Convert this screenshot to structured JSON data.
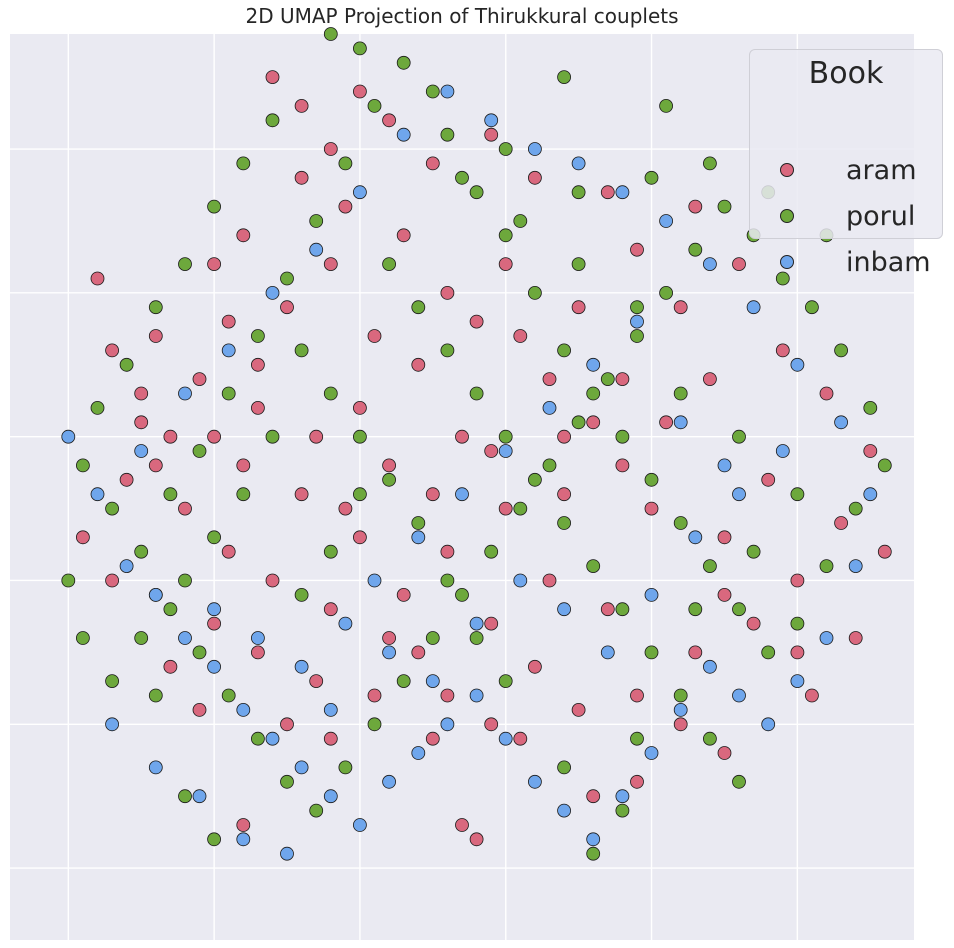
{
  "chart_data": {
    "type": "scatter",
    "title": "2D UMAP Projection of Thirukkural couplets",
    "xlabel": "",
    "ylabel": "",
    "xlim": [
      -0.4,
      5.8
    ],
    "ylim": [
      -0.5,
      5.8
    ],
    "x_ticks": [
      0,
      1,
      2,
      3,
      4,
      5,
      6
    ],
    "y_ticks": [
      0,
      1,
      2,
      3,
      4,
      5,
      6
    ],
    "tick_labels_visible": false,
    "grid": true,
    "background": "#EAEAF2",
    "legend": {
      "title": "Book",
      "position": "upper right",
      "entries": [
        "aram",
        "porul",
        "inbam"
      ]
    },
    "colors": {
      "aram": "#D9687E",
      "porul": "#6DA83C",
      "inbam": "#6FA6EC"
    },
    "series": [
      {
        "name": "aram",
        "points": [
          [
            0.4,
            2.7
          ],
          [
            0.6,
            2.8
          ],
          [
            0.5,
            3.1
          ],
          [
            0.3,
            3.6
          ],
          [
            0.2,
            4.1
          ],
          [
            1.4,
            5.5
          ],
          [
            1.6,
            5.3
          ],
          [
            1.8,
            5.0
          ],
          [
            2.2,
            5.2
          ],
          [
            2.5,
            4.9
          ],
          [
            1.9,
            4.6
          ],
          [
            1.2,
            4.4
          ],
          [
            1.0,
            4.2
          ],
          [
            1.5,
            3.9
          ],
          [
            2.1,
            3.7
          ],
          [
            2.4,
            3.5
          ],
          [
            2.8,
            3.8
          ],
          [
            3.0,
            4.2
          ],
          [
            3.3,
            3.4
          ],
          [
            3.6,
            3.1
          ],
          [
            2.7,
            3.0
          ],
          [
            2.2,
            2.8
          ],
          [
            1.9,
            2.5
          ],
          [
            1.7,
            3.0
          ],
          [
            1.3,
            3.2
          ],
          [
            0.9,
            3.4
          ],
          [
            0.7,
            3.0
          ],
          [
            0.8,
            2.5
          ],
          [
            1.1,
            2.2
          ],
          [
            1.4,
            2.0
          ],
          [
            1.8,
            1.8
          ],
          [
            2.3,
            1.9
          ],
          [
            2.6,
            2.2
          ],
          [
            3.0,
            2.5
          ],
          [
            3.4,
            2.6
          ],
          [
            3.8,
            2.8
          ],
          [
            4.1,
            3.1
          ],
          [
            4.4,
            3.4
          ],
          [
            4.2,
            3.9
          ],
          [
            4.6,
            4.2
          ],
          [
            4.9,
            3.6
          ],
          [
            5.2,
            3.3
          ],
          [
            5.5,
            2.9
          ],
          [
            5.3,
            2.4
          ],
          [
            5.0,
            2.0
          ],
          [
            4.7,
            1.7
          ],
          [
            4.3,
            1.5
          ],
          [
            3.9,
            1.2
          ],
          [
            3.5,
            1.1
          ],
          [
            3.2,
            1.4
          ],
          [
            2.9,
            1.0
          ],
          [
            2.5,
            0.9
          ],
          [
            2.1,
            1.2
          ],
          [
            1.7,
            1.3
          ],
          [
            1.3,
            1.5
          ],
          [
            1.0,
            1.7
          ],
          [
            0.6,
            1.9
          ],
          [
            0.3,
            2.0
          ],
          [
            0.1,
            2.3
          ],
          [
            0.7,
            1.4
          ],
          [
            0.9,
            1.1
          ],
          [
            1.5,
            1.0
          ],
          [
            2.7,
            0.3
          ],
          [
            2.8,
            0.2
          ],
          [
            1.2,
            0.3
          ],
          [
            3.9,
            0.6
          ],
          [
            4.5,
            0.8
          ],
          [
            5.1,
            1.2
          ],
          [
            5.4,
            1.6
          ],
          [
            5.6,
            2.2
          ],
          [
            4.8,
            2.7
          ],
          [
            4.5,
            2.3
          ],
          [
            3.7,
            1.8
          ],
          [
            3.3,
            2.0
          ],
          [
            2.9,
            1.7
          ],
          [
            2.4,
            1.5
          ],
          [
            2.0,
            2.3
          ],
          [
            1.6,
            2.6
          ],
          [
            1.2,
            2.8
          ],
          [
            1.0,
            3.0
          ],
          [
            0.5,
            3.3
          ],
          [
            1.8,
            4.2
          ],
          [
            2.3,
            4.4
          ],
          [
            2.6,
            4.0
          ],
          [
            3.1,
            3.7
          ],
          [
            3.5,
            3.9
          ],
          [
            3.9,
            4.3
          ],
          [
            4.3,
            4.6
          ],
          [
            3.7,
            4.7
          ],
          [
            3.2,
            4.8
          ],
          [
            2.9,
            5.1
          ],
          [
            2.0,
            5.4
          ],
          [
            1.6,
            4.8
          ],
          [
            1.1,
            3.8
          ],
          [
            0.6,
            3.7
          ],
          [
            1.3,
            3.5
          ],
          [
            2.0,
            3.2
          ],
          [
            2.5,
            2.6
          ],
          [
            2.9,
            2.9
          ],
          [
            3.4,
            3.0
          ],
          [
            3.8,
            3.4
          ],
          [
            4.0,
            2.5
          ],
          [
            4.5,
            1.9
          ],
          [
            5.0,
            1.5
          ],
          [
            4.2,
            1.0
          ],
          [
            3.6,
            0.5
          ],
          [
            3.1,
            0.9
          ],
          [
            2.6,
            1.2
          ],
          [
            2.2,
            1.6
          ],
          [
            1.8,
            0.9
          ]
        ]
      },
      {
        "name": "porul",
        "points": [
          [
            0.1,
            2.8
          ],
          [
            0.3,
            2.5
          ],
          [
            0.5,
            2.2
          ],
          [
            0.7,
            2.6
          ],
          [
            0.9,
            2.9
          ],
          [
            1.1,
            3.3
          ],
          [
            1.3,
            3.7
          ],
          [
            1.5,
            4.1
          ],
          [
            1.7,
            4.5
          ],
          [
            1.9,
            4.9
          ],
          [
            2.1,
            5.3
          ],
          [
            2.3,
            5.6
          ],
          [
            2.6,
            5.1
          ],
          [
            2.8,
            4.7
          ],
          [
            3.0,
            4.4
          ],
          [
            3.2,
            4.0
          ],
          [
            3.4,
            3.6
          ],
          [
            3.6,
            3.3
          ],
          [
            3.8,
            3.0
          ],
          [
            4.0,
            2.7
          ],
          [
            4.2,
            2.4
          ],
          [
            4.4,
            2.1
          ],
          [
            4.6,
            1.8
          ],
          [
            4.8,
            1.5
          ],
          [
            5.0,
            1.7
          ],
          [
            5.2,
            2.1
          ],
          [
            5.4,
            2.5
          ],
          [
            5.6,
            2.8
          ],
          [
            5.5,
            3.2
          ],
          [
            5.3,
            3.6
          ],
          [
            5.1,
            3.9
          ],
          [
            4.9,
            4.1
          ],
          [
            4.7,
            4.4
          ],
          [
            4.5,
            4.6
          ],
          [
            4.3,
            4.3
          ],
          [
            4.1,
            4.0
          ],
          [
            3.9,
            3.7
          ],
          [
            3.7,
            3.4
          ],
          [
            3.5,
            3.1
          ],
          [
            3.3,
            2.8
          ],
          [
            3.1,
            2.5
          ],
          [
            2.9,
            2.2
          ],
          [
            2.7,
            1.9
          ],
          [
            2.5,
            1.6
          ],
          [
            2.3,
            1.3
          ],
          [
            2.1,
            1.0
          ],
          [
            1.9,
            0.7
          ],
          [
            1.7,
            0.4
          ],
          [
            1.5,
            0.6
          ],
          [
            1.3,
            0.9
          ],
          [
            1.1,
            1.2
          ],
          [
            0.9,
            1.5
          ],
          [
            0.7,
            1.8
          ],
          [
            0.5,
            1.6
          ],
          [
            0.3,
            1.3
          ],
          [
            0.1,
            1.6
          ],
          [
            0.0,
            2.0
          ],
          [
            0.2,
            3.2
          ],
          [
            0.4,
            3.5
          ],
          [
            0.6,
            3.9
          ],
          [
            0.8,
            4.2
          ],
          [
            1.0,
            4.6
          ],
          [
            1.2,
            4.9
          ],
          [
            1.4,
            5.2
          ],
          [
            2.0,
            5.7
          ],
          [
            2.5,
            5.4
          ],
          [
            3.0,
            5.0
          ],
          [
            3.5,
            4.7
          ],
          [
            4.0,
            4.8
          ],
          [
            4.4,
            4.9
          ],
          [
            4.8,
            4.7
          ],
          [
            5.2,
            4.4
          ],
          [
            2.2,
            4.2
          ],
          [
            2.4,
            3.9
          ],
          [
            2.6,
            3.6
          ],
          [
            2.8,
            3.3
          ],
          [
            3.0,
            3.0
          ],
          [
            3.2,
            2.7
          ],
          [
            3.4,
            2.4
          ],
          [
            3.6,
            2.1
          ],
          [
            3.8,
            1.8
          ],
          [
            4.0,
            1.5
          ],
          [
            4.2,
            1.2
          ],
          [
            4.4,
            0.9
          ],
          [
            4.6,
            0.6
          ],
          [
            3.8,
            0.4
          ],
          [
            3.4,
            0.7
          ],
          [
            3.0,
            1.3
          ],
          [
            2.8,
            1.6
          ],
          [
            2.6,
            2.0
          ],
          [
            2.4,
            2.4
          ],
          [
            2.2,
            2.7
          ],
          [
            2.0,
            3.0
          ],
          [
            1.8,
            3.3
          ],
          [
            1.6,
            3.6
          ],
          [
            1.4,
            3.0
          ],
          [
            1.2,
            2.6
          ],
          [
            1.0,
            2.3
          ],
          [
            0.8,
            2.0
          ],
          [
            0.6,
            1.2
          ],
          [
            0.8,
            0.5
          ],
          [
            1.0,
            0.2
          ],
          [
            1.6,
            1.9
          ],
          [
            1.8,
            2.2
          ],
          [
            2.0,
            2.6
          ],
          [
            3.6,
            0.1
          ],
          [
            3.9,
            0.9
          ],
          [
            4.3,
            1.8
          ],
          [
            4.7,
            2.2
          ],
          [
            5.0,
            2.6
          ],
          [
            4.6,
            3.0
          ],
          [
            4.2,
            3.3
          ],
          [
            3.9,
            3.9
          ],
          [
            3.5,
            4.2
          ],
          [
            3.1,
            4.5
          ],
          [
            2.7,
            4.8
          ],
          [
            1.8,
            5.8
          ],
          [
            3.4,
            5.5
          ],
          [
            4.1,
            5.3
          ]
        ]
      },
      {
        "name": "inbam",
        "points": [
          [
            0.0,
            3.0
          ],
          [
            0.2,
            2.6
          ],
          [
            0.4,
            2.1
          ],
          [
            0.6,
            1.9
          ],
          [
            0.8,
            1.6
          ],
          [
            1.0,
            1.4
          ],
          [
            1.2,
            1.1
          ],
          [
            1.4,
            0.9
          ],
          [
            1.6,
            0.7
          ],
          [
            1.8,
            0.5
          ],
          [
            2.0,
            0.3
          ],
          [
            2.2,
            0.6
          ],
          [
            2.4,
            0.8
          ],
          [
            2.6,
            1.0
          ],
          [
            2.8,
            1.2
          ],
          [
            3.0,
            0.9
          ],
          [
            3.2,
            0.6
          ],
          [
            3.4,
            0.4
          ],
          [
            3.6,
            0.2
          ],
          [
            3.8,
            0.5
          ],
          [
            4.0,
            0.8
          ],
          [
            4.2,
            1.1
          ],
          [
            4.4,
            1.4
          ],
          [
            4.6,
            1.2
          ],
          [
            4.8,
            1.0
          ],
          [
            5.0,
            1.3
          ],
          [
            5.2,
            1.6
          ],
          [
            5.4,
            2.1
          ],
          [
            5.5,
            2.6
          ],
          [
            5.3,
            3.1
          ],
          [
            5.0,
            3.5
          ],
          [
            4.7,
            3.9
          ],
          [
            4.4,
            4.2
          ],
          [
            4.1,
            4.5
          ],
          [
            3.8,
            4.7
          ],
          [
            3.5,
            4.9
          ],
          [
            3.2,
            5.0
          ],
          [
            2.9,
            5.2
          ],
          [
            2.6,
            5.4
          ],
          [
            2.3,
            5.1
          ],
          [
            2.0,
            4.7
          ],
          [
            1.7,
            4.3
          ],
          [
            1.4,
            4.0
          ],
          [
            1.1,
            3.6
          ],
          [
            0.8,
            3.3
          ],
          [
            0.5,
            2.9
          ],
          [
            1.0,
            1.8
          ],
          [
            1.3,
            1.6
          ],
          [
            1.6,
            1.4
          ],
          [
            1.9,
            1.7
          ],
          [
            2.2,
            1.5
          ],
          [
            2.5,
            1.3
          ],
          [
            2.8,
            1.7
          ],
          [
            3.1,
            2.0
          ],
          [
            3.4,
            1.8
          ],
          [
            3.7,
            1.5
          ],
          [
            4.0,
            1.9
          ],
          [
            4.3,
            2.3
          ],
          [
            4.6,
            2.6
          ],
          [
            4.9,
            2.9
          ],
          [
            0.3,
            1.0
          ],
          [
            0.6,
            0.7
          ],
          [
            0.9,
            0.5
          ],
          [
            1.2,
            0.2
          ],
          [
            1.5,
            0.1
          ],
          [
            1.8,
            1.1
          ],
          [
            2.1,
            2.0
          ],
          [
            2.4,
            2.3
          ],
          [
            2.7,
            2.6
          ],
          [
            3.0,
            2.9
          ],
          [
            3.3,
            3.2
          ],
          [
            3.6,
            3.5
          ],
          [
            3.9,
            3.8
          ],
          [
            4.2,
            3.1
          ],
          [
            4.5,
            2.8
          ]
        ]
      }
    ]
  }
}
